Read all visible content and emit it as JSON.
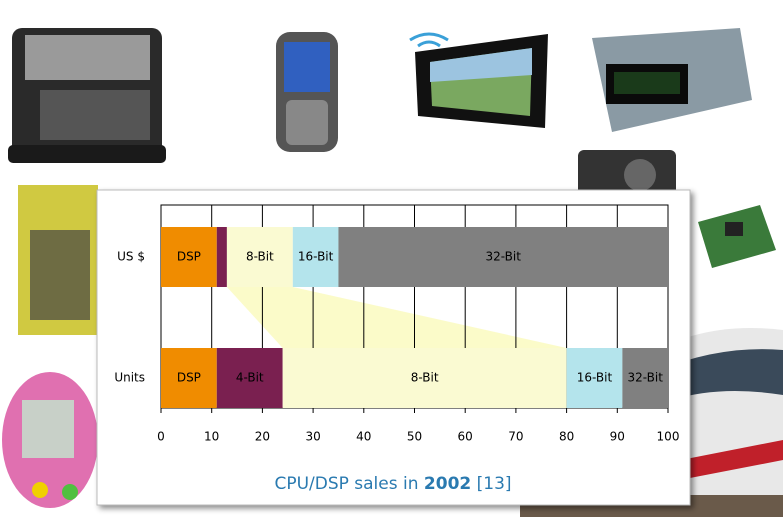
{
  "chart_data": {
    "type": "bar",
    "orientation": "horizontal",
    "stacked": true,
    "caption": {
      "text": "CPU/DSP sales in",
      "year": "2002",
      "ref": "[13]"
    },
    "categories": [
      "US $",
      "Units"
    ],
    "series": [
      {
        "name": "DSP",
        "color": "#f08c00",
        "values": [
          11,
          11
        ]
      },
      {
        "name": "4-Bit",
        "color": "#7a2050",
        "values": [
          2,
          13
        ]
      },
      {
        "name": "8-Bit",
        "color": "#fafad2",
        "values": [
          13,
          56
        ]
      },
      {
        "name": "16-Bit",
        "color": "#b4e4ec",
        "values": [
          9,
          11
        ]
      },
      {
        "name": "32-Bit",
        "color": "#808080",
        "values": [
          65,
          9
        ]
      }
    ],
    "xlim": [
      0,
      100
    ],
    "xticks": [
      0,
      10,
      20,
      30,
      40,
      50,
      60,
      70,
      80,
      90,
      100
    ],
    "grid": true
  }
}
